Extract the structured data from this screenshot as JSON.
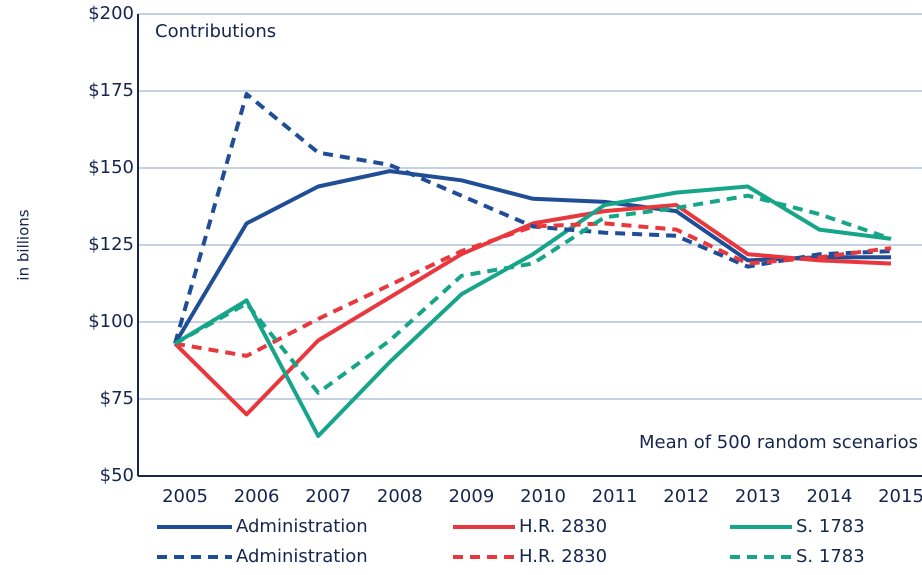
{
  "chart_data": {
    "type": "line",
    "annotations": [
      "Contributions",
      "Mean of 500 random scenarios"
    ],
    "y_label": "in billions",
    "categories": [
      "2005",
      "2006",
      "2007",
      "2008",
      "2009",
      "2010",
      "2011",
      "2012",
      "2013",
      "2014",
      "2015"
    ],
    "series": [
      {
        "name": "Administration",
        "color": "#1f4e96",
        "dashed": false,
        "values": [
          93,
          132,
          144,
          149,
          146,
          140,
          139,
          136,
          120,
          121,
          121
        ]
      },
      {
        "name": "H.R. 2830",
        "color": "#e8383d",
        "dashed": false,
        "values": [
          93,
          70,
          94,
          108,
          122,
          132,
          136,
          138,
          122,
          120,
          119
        ]
      },
      {
        "name": "S. 1783",
        "color": "#17a58a",
        "dashed": false,
        "values": [
          93,
          107,
          63,
          87,
          109,
          122,
          138,
          142,
          144,
          130,
          127
        ]
      },
      {
        "name": "Administration",
        "color": "#1f4e96",
        "dashed": true,
        "values": [
          93,
          174,
          155,
          151,
          141,
          131,
          129,
          128,
          118,
          122,
          123
        ]
      },
      {
        "name": "H.R. 2830",
        "color": "#e8383d",
        "dashed": true,
        "values": [
          93,
          89,
          101,
          112,
          123,
          131,
          132,
          130,
          119,
          121,
          124
        ]
      },
      {
        "name": "S. 1783",
        "color": "#17a58a",
        "dashed": true,
        "values": [
          93,
          106,
          77,
          94,
          115,
          119,
          134,
          137,
          141,
          135,
          127
        ]
      }
    ],
    "ylim": [
      50,
      200
    ],
    "yticks": [
      {
        "value": 50,
        "label": "$50"
      },
      {
        "value": 75,
        "label": "$75"
      },
      {
        "value": 100,
        "label": "$100"
      },
      {
        "value": 125,
        "label": "$125"
      },
      {
        "value": 150,
        "label": "$150"
      },
      {
        "value": 175,
        "label": "$175"
      },
      {
        "value": 200,
        "label": "$200"
      }
    ],
    "grid": true
  }
}
